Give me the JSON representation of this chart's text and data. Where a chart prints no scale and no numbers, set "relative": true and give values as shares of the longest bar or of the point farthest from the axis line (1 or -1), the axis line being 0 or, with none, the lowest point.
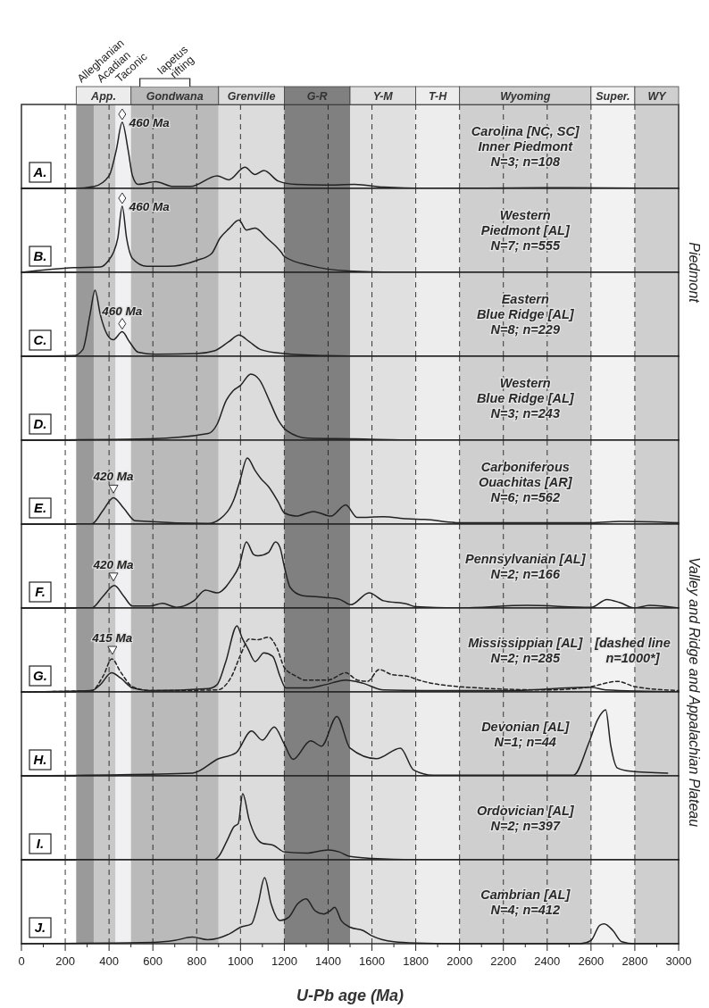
{
  "chart_data": [
    {
      "type": "line",
      "relative": true,
      "xlim": [
        0,
        3000
      ],
      "xticks": [
        0,
        200,
        400,
        600,
        800,
        1000,
        1200,
        1400,
        1600,
        1800,
        2000,
        2200,
        2400,
        2600,
        2800,
        3000
      ],
      "tick_labels": false,
      "grid": "x",
      "y2label": "Piedmont",
      "bands": [
        {
          "axis": "x",
          "from": 250,
          "to": 330,
          "color": "#9a9a9a",
          "label": "Alleghanian"
        },
        {
          "axis": "x",
          "from": 330,
          "to": 430,
          "color": "#c8c8c8",
          "label": "Acadian"
        },
        {
          "axis": "x",
          "from": 430,
          "to": 500,
          "color": "#f0f0f2",
          "label": "Taconic"
        },
        {
          "axis": "x",
          "from": 500,
          "to": 900,
          "color": "#bababa",
          "label": "Gondwana"
        },
        {
          "axis": "x",
          "from": 900,
          "to": 1200,
          "color": "#dcdcdc",
          "label": "Grenville"
        },
        {
          "axis": "x",
          "from": 1200,
          "to": 1500,
          "color": "#808080",
          "label": "G-R"
        },
        {
          "axis": "x",
          "from": 1500,
          "to": 1800,
          "color": "#e0e0e0",
          "label": "Y-M"
        },
        {
          "axis": "x",
          "from": 1800,
          "to": 2000,
          "color": "#ededed",
          "label": "T-H"
        },
        {
          "axis": "x",
          "from": 2000,
          "to": 2600,
          "color": "#d0cfd0",
          "label": "Wyoming"
        },
        {
          "axis": "x",
          "from": 2600,
          "to": 2800,
          "color": "#f2f2f2",
          "label": "Super."
        },
        {
          "axis": "x",
          "from": 2800,
          "to": 3000,
          "color": "#cfcfcf",
          "label": "WY"
        }
      ],
      "annotations": [
        "A.",
        "Carolina [NC, SC]\nInner Piedmont\nN=3; n=108",
        {
          "text": "460 Ma",
          "x": 460,
          "y": 1
        },
        "App.",
        "Iapetus rifting"
      ],
      "series": [
        {
          "color": "#222222",
          "x": [
            0,
            240,
            333,
            400,
            433,
            460,
            487,
            507,
            533,
            613,
            693,
            773,
            893,
            947,
            1020,
            1067,
            1107,
            1173,
            1253,
            1387,
            1520,
            1653,
            1840,
            2400,
            3000
          ],
          "values": [
            0,
            0,
            0.03,
            0.19,
            0.58,
            1,
            0.58,
            0.19,
            0.06,
            0.1,
            0.03,
            0.03,
            0.19,
            0.13,
            0.32,
            0.21,
            0.27,
            0.11,
            0.06,
            0.05,
            0.06,
            0.02,
            0,
            0.01,
            0
          ]
        }
      ]
    },
    {
      "type": "line",
      "relative": true,
      "xlim": [
        0,
        3000
      ],
      "xticks": [
        0,
        200,
        400,
        600,
        800,
        1000,
        1200,
        1400,
        1600,
        1800,
        2000,
        2200,
        2400,
        2600,
        2800,
        3000
      ],
      "tick_labels": false,
      "grid": "x",
      "bands": [
        {
          "axis": "x",
          "from": 250,
          "to": 330,
          "color": "#9a9a9a"
        },
        {
          "axis": "x",
          "from": 330,
          "to": 430,
          "color": "#c8c8c8"
        },
        {
          "axis": "x",
          "from": 430,
          "to": 500,
          "color": "#f0f0f2"
        },
        {
          "axis": "x",
          "from": 500,
          "to": 900,
          "color": "#bababa"
        },
        {
          "axis": "x",
          "from": 900,
          "to": 1200,
          "color": "#dcdcdc"
        },
        {
          "axis": "x",
          "from": 1200,
          "to": 1500,
          "color": "#808080"
        },
        {
          "axis": "x",
          "from": 1500,
          "to": 1800,
          "color": "#e0e0e0"
        },
        {
          "axis": "x",
          "from": 1800,
          "to": 2000,
          "color": "#ededed"
        },
        {
          "axis": "x",
          "from": 2000,
          "to": 2600,
          "color": "#d0cfd0"
        },
        {
          "axis": "x",
          "from": 2600,
          "to": 2800,
          "color": "#f2f2f2"
        },
        {
          "axis": "x",
          "from": 2800,
          "to": 3000,
          "color": "#cfcfcf"
        }
      ],
      "annotations": [
        "B.",
        "Western\nPiedmont [AL]\nN=7; n=555",
        {
          "text": "460 Ma",
          "x": 460,
          "y": 1
        }
      ],
      "series": [
        {
          "color": "#222222",
          "x": [
            0,
            240,
            360,
            400,
            420,
            440,
            460,
            480,
            507,
            573,
            667,
            800,
            867,
            907,
            947,
            993,
            1027,
            1067,
            1120,
            1187,
            1200,
            1320,
            1493,
            1700,
            3000
          ],
          "values": [
            0,
            0.07,
            0.08,
            0.19,
            0.3,
            0.52,
            1,
            0.52,
            0.21,
            0.09,
            0.09,
            0.18,
            0.28,
            0.52,
            0.66,
            0.79,
            0.64,
            0.67,
            0.52,
            0.3,
            0.24,
            0.1,
            0.02,
            0,
            0
          ]
        }
      ]
    },
    {
      "type": "line",
      "relative": true,
      "xlim": [
        0,
        3000
      ],
      "xticks": [
        0,
        200,
        400,
        600,
        800,
        1000,
        1200,
        1400,
        1600,
        1800,
        2000,
        2200,
        2400,
        2600,
        2800,
        3000
      ],
      "tick_labels": false,
      "grid": "x",
      "bands": [
        {
          "axis": "x",
          "from": 250,
          "to": 330,
          "color": "#9a9a9a"
        },
        {
          "axis": "x",
          "from": 330,
          "to": 430,
          "color": "#c8c8c8"
        },
        {
          "axis": "x",
          "from": 430,
          "to": 500,
          "color": "#f0f0f2"
        },
        {
          "axis": "x",
          "from": 500,
          "to": 900,
          "color": "#bababa"
        },
        {
          "axis": "x",
          "from": 900,
          "to": 1200,
          "color": "#dcdcdc"
        },
        {
          "axis": "x",
          "from": 1200,
          "to": 1500,
          "color": "#808080"
        },
        {
          "axis": "x",
          "from": 1500,
          "to": 1800,
          "color": "#e0e0e0"
        },
        {
          "axis": "x",
          "from": 1800,
          "to": 2000,
          "color": "#ededed"
        },
        {
          "axis": "x",
          "from": 2000,
          "to": 2600,
          "color": "#d0cfd0"
        },
        {
          "axis": "x",
          "from": 2600,
          "to": 2800,
          "color": "#f2f2f2"
        },
        {
          "axis": "x",
          "from": 2800,
          "to": 3000,
          "color": "#cfcfcf"
        }
      ],
      "annotations": [
        "C.",
        "Eastern\nBlue Ridge [AL]\nN=8; n=229",
        {
          "text": "460 Ma",
          "x": 460,
          "y": 0.37
        }
      ],
      "series": [
        {
          "color": "#222222",
          "x": [
            0,
            240,
            280,
            313,
            336,
            360,
            393,
            420,
            460,
            493,
            533,
            613,
            800,
            880,
            947,
            993,
            1040,
            1093,
            1200,
            1387,
            1600,
            3000
          ],
          "values": [
            0,
            0.01,
            0.1,
            0.63,
            1,
            0.63,
            0.32,
            0.25,
            0.37,
            0.22,
            0.06,
            0.03,
            0.04,
            0.08,
            0.22,
            0.32,
            0.22,
            0.1,
            0.04,
            0.01,
            0,
            0
          ]
        }
      ]
    },
    {
      "type": "line",
      "relative": true,
      "xlim": [
        0,
        3000
      ],
      "xticks": [
        0,
        200,
        400,
        600,
        800,
        1000,
        1200,
        1400,
        1600,
        1800,
        2000,
        2200,
        2400,
        2600,
        2800,
        3000
      ],
      "tick_labels": false,
      "grid": "x",
      "bands": [
        {
          "axis": "x",
          "from": 250,
          "to": 330,
          "color": "#9a9a9a"
        },
        {
          "axis": "x",
          "from": 330,
          "to": 430,
          "color": "#c8c8c8"
        },
        {
          "axis": "x",
          "from": 430,
          "to": 500,
          "color": "#f0f0f2"
        },
        {
          "axis": "x",
          "from": 500,
          "to": 900,
          "color": "#bababa"
        },
        {
          "axis": "x",
          "from": 900,
          "to": 1200,
          "color": "#dcdcdc"
        },
        {
          "axis": "x",
          "from": 1200,
          "to": 1500,
          "color": "#808080"
        },
        {
          "axis": "x",
          "from": 1500,
          "to": 1800,
          "color": "#e0e0e0"
        },
        {
          "axis": "x",
          "from": 1800,
          "to": 2000,
          "color": "#ededed"
        },
        {
          "axis": "x",
          "from": 2000,
          "to": 2600,
          "color": "#d0cfd0"
        },
        {
          "axis": "x",
          "from": 2600,
          "to": 2800,
          "color": "#f2f2f2"
        },
        {
          "axis": "x",
          "from": 2800,
          "to": 3000,
          "color": "#cfcfcf"
        }
      ],
      "annotations": [
        "D.",
        "Western\nBlue Ridge [AL]\nN=3; n=243"
      ],
      "series": [
        {
          "color": "#222222",
          "x": [
            0,
            587,
            853,
            893,
            933,
            967,
            1000,
            1047,
            1087,
            1133,
            1173,
            1213,
            1307,
            1520,
            1800,
            3000
          ],
          "values": [
            0,
            0.02,
            0.1,
            0.24,
            0.59,
            0.75,
            0.83,
            1,
            0.91,
            0.59,
            0.3,
            0.14,
            0.03,
            0.02,
            0,
            0
          ]
        }
      ]
    },
    {
      "type": "line",
      "relative": true,
      "xlim": [
        0,
        3000
      ],
      "xticks": [
        0,
        200,
        400,
        600,
        800,
        1000,
        1200,
        1400,
        1600,
        1800,
        2000,
        2200,
        2400,
        2600,
        2800,
        3000
      ],
      "tick_labels": false,
      "grid": "x",
      "y2label": "Valley and Ridge and Appalachian Plateau",
      "bands": [
        {
          "axis": "x",
          "from": 250,
          "to": 330,
          "color": "#9a9a9a"
        },
        {
          "axis": "x",
          "from": 330,
          "to": 430,
          "color": "#c8c8c8"
        },
        {
          "axis": "x",
          "from": 430,
          "to": 500,
          "color": "#f0f0f2"
        },
        {
          "axis": "x",
          "from": 500,
          "to": 900,
          "color": "#bababa"
        },
        {
          "axis": "x",
          "from": 900,
          "to": 1200,
          "color": "#dcdcdc"
        },
        {
          "axis": "x",
          "from": 1200,
          "to": 1500,
          "color": "#808080"
        },
        {
          "axis": "x",
          "from": 1500,
          "to": 1800,
          "color": "#e0e0e0"
        },
        {
          "axis": "x",
          "from": 1800,
          "to": 2000,
          "color": "#ededed"
        },
        {
          "axis": "x",
          "from": 2000,
          "to": 2600,
          "color": "#d0cfd0"
        },
        {
          "axis": "x",
          "from": 2600,
          "to": 2800,
          "color": "#f2f2f2"
        },
        {
          "axis": "x",
          "from": 2800,
          "to": 3000,
          "color": "#cfcfcf"
        }
      ],
      "annotations": [
        "E.",
        "Carboniferous\nOuachitas [AR]\nN=6; n=562",
        {
          "text": "420 Ma",
          "x": 420,
          "y": 0.4
        }
      ],
      "series": [
        {
          "color": "#222222",
          "x": [
            0,
            320,
            373,
            420,
            467,
            520,
            853,
            907,
            973,
            997,
            1031,
            1067,
            1093,
            1127,
            1173,
            1200,
            1253,
            1333,
            1413,
            1480,
            1533,
            1653,
            1760,
            1840,
            2000,
            2600,
            2733,
            3000
          ],
          "values": [
            0,
            0,
            0.21,
            0.4,
            0.24,
            0.05,
            0.01,
            0.08,
            0.4,
            0.65,
            1,
            0.81,
            0.69,
            0.57,
            0.33,
            0.17,
            0.12,
            0.19,
            0.12,
            0.29,
            0.1,
            0.11,
            0.08,
            0.07,
            0.02,
            0.02,
            0.04,
            0.02
          ]
        }
      ]
    },
    {
      "type": "line",
      "relative": true,
      "xlim": [
        0,
        3000
      ],
      "xticks": [
        0,
        200,
        400,
        600,
        800,
        1000,
        1200,
        1400,
        1600,
        1800,
        2000,
        2200,
        2400,
        2600,
        2800,
        3000
      ],
      "tick_labels": false,
      "grid": "x",
      "bands": [
        {
          "axis": "x",
          "from": 250,
          "to": 330,
          "color": "#9a9a9a"
        },
        {
          "axis": "x",
          "from": 330,
          "to": 430,
          "color": "#c8c8c8"
        },
        {
          "axis": "x",
          "from": 430,
          "to": 500,
          "color": "#f0f0f2"
        },
        {
          "axis": "x",
          "from": 500,
          "to": 900,
          "color": "#bababa"
        },
        {
          "axis": "x",
          "from": 900,
          "to": 1200,
          "color": "#dcdcdc"
        },
        {
          "axis": "x",
          "from": 1200,
          "to": 1500,
          "color": "#808080"
        },
        {
          "axis": "x",
          "from": 1500,
          "to": 1800,
          "color": "#e0e0e0"
        },
        {
          "axis": "x",
          "from": 1800,
          "to": 2000,
          "color": "#ededed"
        },
        {
          "axis": "x",
          "from": 2000,
          "to": 2600,
          "color": "#d0cfd0"
        },
        {
          "axis": "x",
          "from": 2600,
          "to": 2800,
          "color": "#f2f2f2"
        },
        {
          "axis": "x",
          "from": 2800,
          "to": 3000,
          "color": "#cfcfcf"
        }
      ],
      "annotations": [
        "F.",
        "Pennsylvanian [AL]\nN=2; n=166",
        {
          "text": "420 Ma",
          "x": 420,
          "y": 0.34
        }
      ],
      "series": [
        {
          "color": "#222222",
          "x": [
            0,
            320,
            373,
            424,
            467,
            507,
            587,
            644,
            707,
            787,
            840,
            893,
            960,
            993,
            1027,
            1060,
            1080,
            1127,
            1160,
            1180,
            1200,
            1227,
            1280,
            1387,
            1453,
            1504,
            1587,
            1653,
            1760,
            1800,
            2000,
            2307,
            2600,
            2673,
            2733,
            2800,
            2867,
            3000
          ],
          "values": [
            0,
            0,
            0.18,
            0.34,
            0.18,
            0.03,
            0.03,
            0.07,
            0.01,
            0.11,
            0.27,
            0.23,
            0.44,
            0.63,
            1,
            0.81,
            0.79,
            0.84,
            1,
            0.92,
            0.63,
            0.31,
            0.19,
            0.16,
            0.13,
            0.05,
            0.23,
            0.11,
            0.06,
            0.02,
            0,
            0.04,
            0.01,
            0.13,
            0.08,
            0,
            0.04,
            0
          ]
        }
      ]
    },
    {
      "type": "line",
      "relative": true,
      "xlim": [
        0,
        3000
      ],
      "xticks": [
        0,
        200,
        400,
        600,
        800,
        1000,
        1200,
        1400,
        1600,
        1800,
        2000,
        2200,
        2400,
        2600,
        2800,
        3000
      ],
      "tick_labels": false,
      "grid": "x",
      "bands": [
        {
          "axis": "x",
          "from": 250,
          "to": 330,
          "color": "#9a9a9a"
        },
        {
          "axis": "x",
          "from": 330,
          "to": 430,
          "color": "#c8c8c8"
        },
        {
          "axis": "x",
          "from": 430,
          "to": 500,
          "color": "#f0f0f2"
        },
        {
          "axis": "x",
          "from": 500,
          "to": 900,
          "color": "#bababa"
        },
        {
          "axis": "x",
          "from": 900,
          "to": 1200,
          "color": "#dcdcdc"
        },
        {
          "axis": "x",
          "from": 1200,
          "to": 1500,
          "color": "#808080"
        },
        {
          "axis": "x",
          "from": 1500,
          "to": 1800,
          "color": "#e0e0e0"
        },
        {
          "axis": "x",
          "from": 1800,
          "to": 2000,
          "color": "#ededed"
        },
        {
          "axis": "x",
          "from": 2000,
          "to": 2600,
          "color": "#d0cfd0"
        },
        {
          "axis": "x",
          "from": 2600,
          "to": 2800,
          "color": "#f2f2f2"
        },
        {
          "axis": "x",
          "from": 2800,
          "to": 3000,
          "color": "#cfcfcf"
        }
      ],
      "annotations": [
        "G.",
        "Mississippian [AL]\nN=2; n=285",
        "[dashed line\nn=1000*]",
        {
          "text": "415 Ma",
          "x": 415,
          "y": 0.5
        }
      ],
      "series": [
        {
          "color": "#222222",
          "x": [
            0,
            320,
            360,
            411,
            453,
            507,
            587,
            853,
            893,
            933,
            984,
            1007,
            1033,
            1067,
            1107,
            1147,
            1180,
            1207,
            1307,
            1387,
            1480,
            1560,
            1653,
            1840,
            2200,
            2600,
            2667,
            3000
          ],
          "values": [
            0,
            0.02,
            0.11,
            0.29,
            0.21,
            0.06,
            0.02,
            0.05,
            0.11,
            0.46,
            1,
            0.82,
            0.66,
            0.46,
            0.59,
            0.54,
            0.24,
            0.06,
            0.06,
            0.11,
            0.18,
            0.13,
            0.03,
            0.02,
            0.02,
            0.07,
            0.03,
            0
          ]
        },
        {
          "color": "#222222",
          "line_style": "dashed",
          "x": [
            0,
            320,
            373,
            413,
            453,
            507,
            587,
            893,
            960,
            1000,
            1040,
            1080,
            1127,
            1167,
            1200,
            1253,
            1293,
            1400,
            1480,
            1533,
            1580,
            1633,
            1693,
            1760,
            1813,
            2000,
            2400,
            2600,
            2720,
            2800,
            3000
          ],
          "values": [
            0,
            0.02,
            0.24,
            0.5,
            0.3,
            0.08,
            0.02,
            0.03,
            0.24,
            0.56,
            0.8,
            0.79,
            0.83,
            0.66,
            0.37,
            0.24,
            0.18,
            0.18,
            0.29,
            0.18,
            0.16,
            0.34,
            0.26,
            0.24,
            0.18,
            0.08,
            0.03,
            0.08,
            0.16,
            0.08,
            0.02
          ]
        }
      ]
    },
    {
      "type": "line",
      "relative": true,
      "xlim": [
        0,
        3000
      ],
      "xticks": [
        0,
        200,
        400,
        600,
        800,
        1000,
        1200,
        1400,
        1600,
        1800,
        2000,
        2200,
        2400,
        2600,
        2800,
        3000
      ],
      "tick_labels": false,
      "grid": "x",
      "bands": [
        {
          "axis": "x",
          "from": 250,
          "to": 330,
          "color": "#9a9a9a"
        },
        {
          "axis": "x",
          "from": 330,
          "to": 430,
          "color": "#c8c8c8"
        },
        {
          "axis": "x",
          "from": 430,
          "to": 500,
          "color": "#f0f0f2"
        },
        {
          "axis": "x",
          "from": 500,
          "to": 900,
          "color": "#bababa"
        },
        {
          "axis": "x",
          "from": 900,
          "to": 1200,
          "color": "#dcdcdc"
        },
        {
          "axis": "x",
          "from": 1200,
          "to": 1500,
          "color": "#808080"
        },
        {
          "axis": "x",
          "from": 1500,
          "to": 1800,
          "color": "#e0e0e0"
        },
        {
          "axis": "x",
          "from": 1800,
          "to": 2000,
          "color": "#ededed"
        },
        {
          "axis": "x",
          "from": 2000,
          "to": 2600,
          "color": "#d0cfd0"
        },
        {
          "axis": "x",
          "from": 2600,
          "to": 2800,
          "color": "#f2f2f2"
        },
        {
          "axis": "x",
          "from": 2800,
          "to": 3000,
          "color": "#cfcfcf"
        }
      ],
      "annotations": [
        "H.",
        "Devonian [AL]\nN=1; n=44"
      ],
      "series": [
        {
          "color": "#222222",
          "x": [
            0,
            780,
            900,
            980,
            1050,
            1100,
            1154,
            1200,
            1240,
            1320,
            1370,
            1440,
            1500,
            1620,
            1730,
            1790,
            1880,
            2520,
            2590,
            2630,
            2667,
            2690,
            2720,
            2780,
            2950
          ],
          "values": [
            0,
            0.04,
            0.26,
            0.35,
            0.68,
            0.54,
            0.74,
            0.48,
            0.25,
            0.53,
            0.45,
            0.9,
            0.42,
            0.26,
            0.42,
            0.09,
            0.01,
            0.01,
            0.5,
            0.85,
            1,
            0.46,
            0.12,
            0.07,
            0.04
          ]
        }
      ]
    },
    {
      "type": "line",
      "relative": true,
      "xlim": [
        0,
        3000
      ],
      "xticks": [
        0,
        200,
        400,
        600,
        800,
        1000,
        1200,
        1400,
        1600,
        1800,
        2000,
        2200,
        2400,
        2600,
        2800,
        3000
      ],
      "tick_labels": false,
      "grid": "x",
      "bands": [
        {
          "axis": "x",
          "from": 250,
          "to": 330,
          "color": "#9a9a9a"
        },
        {
          "axis": "x",
          "from": 330,
          "to": 430,
          "color": "#c8c8c8"
        },
        {
          "axis": "x",
          "from": 430,
          "to": 500,
          "color": "#f0f0f2"
        },
        {
          "axis": "x",
          "from": 500,
          "to": 900,
          "color": "#bababa"
        },
        {
          "axis": "x",
          "from": 900,
          "to": 1200,
          "color": "#dcdcdc"
        },
        {
          "axis": "x",
          "from": 1200,
          "to": 1500,
          "color": "#808080"
        },
        {
          "axis": "x",
          "from": 1500,
          "to": 1800,
          "color": "#e0e0e0"
        },
        {
          "axis": "x",
          "from": 1800,
          "to": 2000,
          "color": "#ededed"
        },
        {
          "axis": "x",
          "from": 2000,
          "to": 2600,
          "color": "#d0cfd0"
        },
        {
          "axis": "x",
          "from": 2600,
          "to": 2800,
          "color": "#f2f2f2"
        },
        {
          "axis": "x",
          "from": 2800,
          "to": 3000,
          "color": "#cfcfcf"
        }
      ],
      "annotations": [
        "I.",
        "Ordovician [AL]\nN=2; n=397"
      ],
      "series": [
        {
          "color": "#222222",
          "x": [
            0,
            880,
            900,
            940,
            970,
            990,
            1010,
            1040,
            1070,
            1100,
            1150,
            1200,
            1300,
            1400,
            1450,
            1500,
            1600,
            1800,
            3000
          ],
          "values": [
            0,
            0,
            0.05,
            0.3,
            0.5,
            0.55,
            1,
            0.6,
            0.35,
            0.25,
            0.22,
            0.12,
            0.1,
            0.15,
            0.12,
            0.05,
            0.02,
            0,
            0
          ]
        }
      ]
    },
    {
      "type": "line",
      "relative": true,
      "xlim": [
        0,
        3000
      ],
      "xticks": [
        0,
        {
          "value": 100,
          "label": null
        },
        200,
        {
          "value": 300,
          "label": null
        },
        400,
        {
          "value": 500,
          "label": null
        },
        600,
        {
          "value": 700,
          "label": null
        },
        800,
        {
          "value": 900,
          "label": null
        },
        1000,
        {
          "value": 1100,
          "label": null
        },
        1200,
        {
          "value": 1300,
          "label": null
        },
        1400,
        {
          "value": 1500,
          "label": null
        },
        1600,
        {
          "value": 1700,
          "label": null
        },
        1800,
        {
          "value": 1900,
          "label": null
        },
        2000,
        {
          "value": 2100,
          "label": null
        },
        2200,
        {
          "value": 2300,
          "label": null
        },
        2400,
        {
          "value": 2500,
          "label": null
        },
        2600,
        {
          "value": 2700,
          "label": null
        },
        2800,
        {
          "value": 2900,
          "label": null
        },
        3000
      ],
      "tick_labels": "x",
      "grid": "x",
      "xlabel": "U-Pb age (Ma)",
      "bands": [
        {
          "axis": "x",
          "from": 250,
          "to": 330,
          "color": "#9a9a9a"
        },
        {
          "axis": "x",
          "from": 330,
          "to": 430,
          "color": "#c8c8c8"
        },
        {
          "axis": "x",
          "from": 430,
          "to": 500,
          "color": "#f0f0f2"
        },
        {
          "axis": "x",
          "from": 500,
          "to": 900,
          "color": "#bababa"
        },
        {
          "axis": "x",
          "from": 900,
          "to": 1200,
          "color": "#dcdcdc"
        },
        {
          "axis": "x",
          "from": 1200,
          "to": 1500,
          "color": "#808080"
        },
        {
          "axis": "x",
          "from": 1500,
          "to": 1800,
          "color": "#e0e0e0"
        },
        {
          "axis": "x",
          "from": 1800,
          "to": 2000,
          "color": "#ededed"
        },
        {
          "axis": "x",
          "from": 2000,
          "to": 2600,
          "color": "#d0cfd0"
        },
        {
          "axis": "x",
          "from": 2600,
          "to": 2800,
          "color": "#f2f2f2"
        },
        {
          "axis": "x",
          "from": 2800,
          "to": 3000,
          "color": "#cfcfcf"
        }
      ],
      "annotations": [
        "J.",
        "Cambrian [AL]\nN=4; n=412"
      ],
      "series": [
        {
          "color": "#222222",
          "x": [
            0,
            600,
            700,
            780,
            850,
            950,
            1000,
            1050,
            1080,
            1110,
            1140,
            1180,
            1220,
            1260,
            1300,
            1340,
            1380,
            1410,
            1430,
            1460,
            1500,
            1560,
            1600,
            1700,
            1800,
            2000,
            2550,
            2600,
            2640,
            2660,
            2700,
            2740,
            2800,
            3000
          ],
          "values": [
            0,
            0.02,
            0.05,
            0.1,
            0.06,
            0.15,
            0.25,
            0.3,
            0.6,
            1,
            0.6,
            0.35,
            0.4,
            0.6,
            0.68,
            0.5,
            0.45,
            0.5,
            0.55,
            0.35,
            0.25,
            0.2,
            0.12,
            0.03,
            0.01,
            0,
            0,
            0.05,
            0.28,
            0.3,
            0.2,
            0.03,
            0,
            0
          ]
        }
      ]
    }
  ]
}
